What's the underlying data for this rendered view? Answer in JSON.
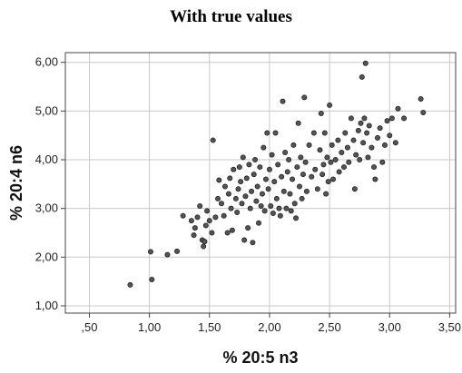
{
  "chart_data": {
    "type": "scatter",
    "title": "With true values",
    "xlabel": "% 20:5 n3",
    "ylabel": "% 20:4 n6",
    "xlim": [
      0.3,
      3.55
    ],
    "ylim": [
      0.85,
      6.2
    ],
    "x_ticks": [
      0.5,
      1.0,
      1.5,
      2.0,
      2.5,
      3.0,
      3.5
    ],
    "x_tick_labels": [
      ",50",
      "1,00",
      "1,50",
      "2,00",
      "2,50",
      "3,00",
      "3,50"
    ],
    "y_ticks": [
      1.0,
      2.0,
      3.0,
      4.0,
      5.0,
      6.0
    ],
    "y_tick_labels": [
      "1,00",
      "2,00",
      "3,00",
      "4,00",
      "5,00",
      "6,00"
    ],
    "grid": true,
    "marker_color": "#555555",
    "marker_edge_color": "#222222",
    "points": [
      [
        0.84,
        1.43
      ],
      [
        1.02,
        1.54
      ],
      [
        1.01,
        2.11
      ],
      [
        1.15,
        2.05
      ],
      [
        1.23,
        2.12
      ],
      [
        1.28,
        2.85
      ],
      [
        1.35,
        2.75
      ],
      [
        1.37,
        2.45
      ],
      [
        1.38,
        2.6
      ],
      [
        1.4,
        2.82
      ],
      [
        1.42,
        3.05
      ],
      [
        1.44,
        2.35
      ],
      [
        1.45,
        2.22
      ],
      [
        1.46,
        2.32
      ],
      [
        1.47,
        2.65
      ],
      [
        1.48,
        2.95
      ],
      [
        1.5,
        2.75
      ],
      [
        1.52,
        2.5
      ],
      [
        1.53,
        4.4
      ],
      [
        1.55,
        2.82
      ],
      [
        1.57,
        3.2
      ],
      [
        1.58,
        3.58
      ],
      [
        1.6,
        3.1
      ],
      [
        1.62,
        2.85
      ],
      [
        1.63,
        3.45
      ],
      [
        1.65,
        2.5
      ],
      [
        1.66,
        3.3
      ],
      [
        1.67,
        3.62
      ],
      [
        1.68,
        3.0
      ],
      [
        1.69,
        2.55
      ],
      [
        1.7,
        3.8
      ],
      [
        1.72,
        3.2
      ],
      [
        1.73,
        2.92
      ],
      [
        1.74,
        3.4
      ],
      [
        1.75,
        3.85
      ],
      [
        1.76,
        3.55
      ],
      [
        1.77,
        3.1
      ],
      [
        1.78,
        4.05
      ],
      [
        1.79,
        2.35
      ],
      [
        1.8,
        3.25
      ],
      [
        1.81,
        3.62
      ],
      [
        1.82,
        2.6
      ],
      [
        1.83,
        3.9
      ],
      [
        1.84,
        3.0
      ],
      [
        1.85,
        3.35
      ],
      [
        1.86,
        2.3
      ],
      [
        1.87,
        3.7
      ],
      [
        1.88,
        4.0
      ],
      [
        1.89,
        3.15
      ],
      [
        1.9,
        3.45
      ],
      [
        1.91,
        2.7
      ],
      [
        1.92,
        3.85
      ],
      [
        1.93,
        3.05
      ],
      [
        1.94,
        3.3
      ],
      [
        1.95,
        4.25
      ],
      [
        1.96,
        2.95
      ],
      [
        1.97,
        3.6
      ],
      [
        1.98,
        4.55
      ],
      [
        1.99,
        3.4
      ],
      [
        2.0,
        3.8
      ],
      [
        2.01,
        3.05
      ],
      [
        2.02,
        4.1
      ],
      [
        2.03,
        2.9
      ],
      [
        2.04,
        3.55
      ],
      [
        2.05,
        4.55
      ],
      [
        2.06,
        3.2
      ],
      [
        2.07,
        3.9
      ],
      [
        2.08,
        3.0
      ],
      [
        2.09,
        2.85
      ],
      [
        2.1,
        3.65
      ],
      [
        2.11,
        5.2
      ],
      [
        2.12,
        3.35
      ],
      [
        2.13,
        4.15
      ],
      [
        2.14,
        3.0
      ],
      [
        2.15,
        3.75
      ],
      [
        2.16,
        4.0
      ],
      [
        2.17,
        3.3
      ],
      [
        2.18,
        2.95
      ],
      [
        2.19,
        3.6
      ],
      [
        2.2,
        4.3
      ],
      [
        2.21,
        3.1
      ],
      [
        2.22,
        2.8
      ],
      [
        2.23,
        3.85
      ],
      [
        2.24,
        4.75
      ],
      [
        2.25,
        3.45
      ],
      [
        2.26,
        4.05
      ],
      [
        2.27,
        3.2
      ],
      [
        2.28,
        3.7
      ],
      [
        2.29,
        5.28
      ],
      [
        2.3,
        3.95
      ],
      [
        2.31,
        3.35
      ],
      [
        2.33,
        4.3
      ],
      [
        2.35,
        3.65
      ],
      [
        2.37,
        4.55
      ],
      [
        2.38,
        3.8
      ],
      [
        2.4,
        3.4
      ],
      [
        2.42,
        4.2
      ],
      [
        2.43,
        4.95
      ],
      [
        2.44,
        3.7
      ],
      [
        2.45,
        3.9
      ],
      [
        2.46,
        4.55
      ],
      [
        2.47,
        3.3
      ],
      [
        2.48,
        4.05
      ],
      [
        2.49,
        3.55
      ],
      [
        2.5,
        5.12
      ],
      [
        2.51,
        3.95
      ],
      [
        2.52,
        4.3
      ],
      [
        2.53,
        3.6
      ],
      [
        2.55,
        4.0
      ],
      [
        2.57,
        4.4
      ],
      [
        2.58,
        3.75
      ],
      [
        2.6,
        4.15
      ],
      [
        2.62,
        3.85
      ],
      [
        2.63,
        4.55
      ],
      [
        2.65,
        4.25
      ],
      [
        2.66,
        3.95
      ],
      [
        2.68,
        4.85
      ],
      [
        2.7,
        4.4
      ],
      [
        2.71,
        3.4
      ],
      [
        2.72,
        4.1
      ],
      [
        2.74,
        4.6
      ],
      [
        2.75,
        4.0
      ],
      [
        2.76,
        4.75
      ],
      [
        2.77,
        5.7
      ],
      [
        2.78,
        4.35
      ],
      [
        2.79,
        4.85
      ],
      [
        2.8,
        5.98
      ],
      [
        2.81,
        4.55
      ],
      [
        2.82,
        4.05
      ],
      [
        2.83,
        4.7
      ],
      [
        2.85,
        4.25
      ],
      [
        2.87,
        3.85
      ],
      [
        2.88,
        3.6
      ],
      [
        2.9,
        4.45
      ],
      [
        2.92,
        4.65
      ],
      [
        2.94,
        3.95
      ],
      [
        2.96,
        4.3
      ],
      [
        2.98,
        4.8
      ],
      [
        3.0,
        4.5
      ],
      [
        3.02,
        4.85
      ],
      [
        3.05,
        4.35
      ],
      [
        3.07,
        5.05
      ],
      [
        3.12,
        4.85
      ],
      [
        3.26,
        5.25
      ],
      [
        3.28,
        4.97
      ]
    ]
  }
}
